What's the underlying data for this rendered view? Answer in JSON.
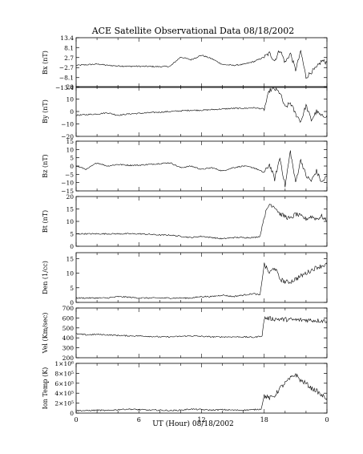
{
  "chart_data": {
    "type": "line",
    "title": "ACE Satellite Observational Data   08/18/2002",
    "xlabel": "UT (Hour)   08/18/2002",
    "x_ticks": [
      "0",
      "6",
      "12",
      "18",
      "0"
    ],
    "xlim": [
      0,
      24
    ],
    "panels": [
      {
        "ylabel": "Bx (nT)",
        "ylim": [
          -13.4,
          13.4
        ],
        "yticks": [
          13.4,
          8.1,
          2.7,
          -2.7,
          -8.1,
          -13.4
        ],
        "ytick_labels": [
          "13.4",
          "8.1",
          "2.7",
          "−2.7",
          "−8.1",
          "−13.4"
        ],
        "series": [
          {
            "x": [
              0,
              1,
              2,
              3,
              4,
              5,
              6,
              7,
              8,
              9,
              10,
              11,
              12,
              13,
              14,
              15,
              16,
              17,
              18,
              18.5,
              19,
              19.5,
              20,
              20.5,
              21,
              21.5,
              22,
              22.5,
              23,
              23.5,
              24
            ],
            "y": [
              -1.5,
              -1.2,
              -0.8,
              -1.5,
              -1.8,
              -2.0,
              -2.0,
              -2.1,
              -2.2,
              -2.0,
              3.0,
              1.5,
              4.0,
              2.0,
              -1.0,
              -1.5,
              -1.0,
              0.5,
              3.0,
              5.0,
              1.0,
              7.0,
              0.0,
              5.0,
              -4.0,
              6.0,
              -8.0,
              -5.0,
              -3.0,
              1.0,
              0.0
            ]
          }
        ]
      },
      {
        "ylabel": "By (nT)",
        "ylim": [
          -20,
          20
        ],
        "yticks": [
          20,
          10,
          0,
          -10,
          -20
        ],
        "ytick_labels": [
          "20",
          "10",
          "0",
          "−10",
          "−20"
        ],
        "series": [
          {
            "x": [
              0,
              1,
              2,
              3,
              4,
              5,
              6,
              7,
              8,
              9,
              10,
              11,
              12,
              13,
              14,
              15,
              16,
              17,
              18,
              18.5,
              19,
              19.5,
              20,
              20.5,
              21,
              21.5,
              22,
              22.5,
              23,
              23.5,
              24
            ],
            "y": [
              -3.0,
              -2.5,
              -2.0,
              -1.0,
              -3.0,
              -2.0,
              -1.5,
              -1.0,
              -0.5,
              0.0,
              0.5,
              1.0,
              1.0,
              1.5,
              2.0,
              2.5,
              2.5,
              3.0,
              2.0,
              17.0,
              18.0,
              15.0,
              3.0,
              7.0,
              -2.0,
              -8.0,
              5.0,
              -7.0,
              0.0,
              -4.0,
              -3.0
            ]
          }
        ]
      },
      {
        "ylabel": "Bz (nT)",
        "ylim": [
          -15,
          15
        ],
        "yticks": [
          15,
          10,
          5,
          0,
          -5,
          -10,
          -15
        ],
        "ytick_labels": [
          "15",
          "10",
          "5",
          "0",
          "−5",
          "−10",
          "−15"
        ],
        "series": [
          {
            "x": [
              0,
              1,
              2,
              3,
              4,
              5,
              6,
              7,
              8,
              9,
              10,
              11,
              12,
              13,
              14,
              15,
              16,
              17,
              18,
              18.5,
              19,
              19.5,
              20,
              20.5,
              21,
              21.5,
              22,
              22.5,
              23,
              23.5,
              24
            ],
            "y": [
              0.0,
              -2.0,
              2.0,
              0.0,
              1.0,
              0.5,
              0.5,
              1.0,
              1.5,
              2.0,
              -1.0,
              0.0,
              -2.0,
              -1.0,
              -3.0,
              -1.0,
              0.0,
              -1.0,
              -4.0,
              1.0,
              -8.0,
              5.0,
              -12.0,
              9.0,
              -10.0,
              4.0,
              -6.0,
              -9.0,
              -3.0,
              -10.0,
              -6.0
            ]
          }
        ]
      },
      {
        "ylabel": "Bt (nT)",
        "ylim": [
          0,
          20
        ],
        "yticks": [
          20,
          15,
          10,
          5,
          0
        ],
        "ytick_labels": [
          "20",
          "15",
          "10",
          "5",
          "0"
        ],
        "series": [
          {
            "x": [
              0,
              1,
              2,
              3,
              4,
              5,
              6,
              7,
              8,
              9,
              10,
              11,
              12,
              13,
              14,
              15,
              16,
              17,
              17.6,
              18,
              18.5,
              19,
              19.5,
              20,
              20.5,
              21,
              21.5,
              22,
              22.5,
              23,
              23.5,
              24
            ],
            "y": [
              5.0,
              5.0,
              5.0,
              5.0,
              5.0,
              5.0,
              5.0,
              4.8,
              4.5,
              4.5,
              4.0,
              3.5,
              4.0,
              3.5,
              3.0,
              3.5,
              3.5,
              3.5,
              4.0,
              12.0,
              17.0,
              16.0,
              13.0,
              12.0,
              11.0,
              13.0,
              12.0,
              11.0,
              12.0,
              11.0,
              12.0,
              10.0
            ]
          }
        ]
      },
      {
        "ylabel": "Den (1/cc)",
        "ylim": [
          0,
          17
        ],
        "yticks": [
          15,
          10,
          5,
          0
        ],
        "ytick_labels": [
          "15",
          "10",
          "5",
          "0"
        ],
        "series": [
          {
            "x": [
              0,
              1,
              2,
              3,
              4,
              5,
              6,
              7,
              8,
              9,
              10,
              11,
              12,
              13,
              14,
              15,
              16,
              17,
              17.6,
              18,
              18.5,
              19,
              19.5,
              20,
              20.5,
              21,
              21.5,
              22,
              22.5,
              23,
              23.5,
              24
            ],
            "y": [
              1.5,
              1.5,
              1.5,
              1.5,
              2.0,
              1.8,
              1.5,
              1.5,
              1.5,
              1.5,
              1.5,
              1.5,
              2.0,
              2.0,
              2.5,
              2.0,
              2.5,
              3.0,
              2.5,
              13.0,
              10.0,
              12.0,
              8.0,
              7.0,
              7.0,
              8.0,
              9.0,
              10.0,
              11.0,
              12.0,
              12.5,
              13.0
            ]
          }
        ]
      },
      {
        "ylabel": "Vel (Km/sec)",
        "ylim": [
          200,
          700
        ],
        "yticks": [
          700,
          600,
          500,
          400,
          300,
          200
        ],
        "ytick_labels": [
          "700",
          "600",
          "500",
          "400",
          "300",
          "200"
        ],
        "series": [
          {
            "x": [
              0,
              1,
              2,
              3,
              4,
              5,
              6,
              7,
              8,
              9,
              10,
              11,
              12,
              13,
              14,
              15,
              16,
              17,
              17.8,
              18,
              19,
              20,
              21,
              22,
              23,
              24
            ],
            "y": [
              440,
              430,
              435,
              430,
              425,
              420,
              420,
              415,
              410,
              410,
              415,
              420,
              415,
              410,
              410,
              410,
              410,
              405,
              420,
              600,
              590,
              585,
              580,
              580,
              575,
              570
            ]
          }
        ]
      },
      {
        "ylabel": "Ion Temp (K)",
        "ylim": [
          0,
          1000000
        ],
        "yticks": [
          1000000,
          800000,
          600000,
          400000,
          200000,
          0
        ],
        "ytick_labels": [
          "1×10⁶",
          "8×10⁵",
          "6×10⁵",
          "4×10⁵",
          "2×10⁵",
          "0"
        ],
        "series": [
          {
            "x": [
              0,
              1,
              2,
              3,
              4,
              5,
              6,
              7,
              8,
              9,
              10,
              11,
              12,
              13,
              14,
              15,
              16,
              17,
              17.7,
              18,
              18.5,
              19,
              19.5,
              20,
              20.5,
              21,
              21.5,
              22,
              22.5,
              23,
              23.5,
              24
            ],
            "y": [
              50000,
              50000,
              60000,
              50000,
              70000,
              80000,
              70000,
              60000,
              60000,
              50000,
              60000,
              80000,
              70000,
              60000,
              70000,
              60000,
              60000,
              70000,
              80000,
              350000,
              300000,
              350000,
              500000,
              600000,
              700000,
              780000,
              650000,
              600000,
              500000,
              450000,
              350000,
              300000
            ]
          }
        ]
      }
    ]
  }
}
